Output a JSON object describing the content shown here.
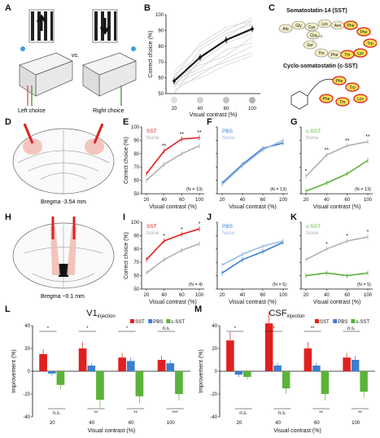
{
  "panels": {
    "A": {
      "label": "A",
      "left_caption": "Left choice",
      "vs": "vs.",
      "right_caption": "Right choice"
    },
    "B": {
      "label": "B",
      "xlabel": "Visual contrast (%)",
      "ylabel": "Correct choice (%)",
      "xticks": [
        "20",
        "40",
        "60",
        "100"
      ],
      "yticks": [
        "50",
        "60",
        "70",
        "80",
        "90",
        "100"
      ]
    },
    "C": {
      "label": "C",
      "title1": "Somatostatin-14 (SST)",
      "title2": "Cyclo-somatostatin (c-SST)",
      "sst_residues": [
        "Ala",
        "Gly",
        "Cys",
        "Lys",
        "Asn",
        "Phe",
        "Phe",
        "Trp",
        "Lys",
        "Thr",
        "Phe",
        "Thr",
        "Ser",
        "Cys"
      ],
      "csst_residues": [
        "Phe",
        "Trp",
        "Lys",
        "Thr",
        "Phe"
      ]
    },
    "D": {
      "label": "D",
      "caption": "Bregma -3.54 mm"
    },
    "H": {
      "label": "H",
      "caption": "Bregma ~0.1 mm"
    },
    "E": {
      "label": "E",
      "legend": [
        "SST",
        "None"
      ],
      "n": "(N = 13)",
      "xlabel": "Visual contrast (%)",
      "ylabel": "Correct choice (%)"
    },
    "F": {
      "label": "F",
      "legend": [
        "PBS",
        "None"
      ],
      "n": "(N = 13)",
      "xlabel": "Visual contrast (%)"
    },
    "G": {
      "label": "G",
      "legend": [
        "c-SST",
        "None"
      ],
      "n": "(N = 13)",
      "xlabel": "Visual contrast (%)"
    },
    "I": {
      "label": "I",
      "legend": [
        "SST",
        "None"
      ],
      "n": "(N = 4)",
      "xlabel": "Visual contrast (%)",
      "ylabel": "Correct choice (%)"
    },
    "J": {
      "label": "J",
      "legend": [
        "PBS",
        "None"
      ],
      "n": "(N = 5)",
      "xlabel": "Visual contrast (%)"
    },
    "K": {
      "label": "K",
      "legend": [
        "c-SST",
        "None"
      ],
      "n": "(N = 5)",
      "xlabel": "Visual contrast (%)"
    },
    "L": {
      "label": "L",
      "title": "V1",
      "title_sub": "injection",
      "legend": [
        "SST",
        "PBS",
        "c-SST"
      ],
      "xlabel": "Visual contrast (%)",
      "ylabel": "Improvement (%)"
    },
    "M": {
      "label": "M",
      "title": "CSF",
      "title_sub": "injection",
      "legend": [
        "SST",
        "PBS",
        "c-SST"
      ],
      "xlabel": "Visual contrast (%)",
      "ylabel": "Improvement (%)"
    }
  },
  "chart_data": [
    {
      "id": "B",
      "type": "line",
      "x": [
        20,
        40,
        60,
        100
      ],
      "ylim": [
        50,
        100
      ],
      "series": [
        {
          "values": [
            58,
            73,
            84,
            91
          ]
        }
      ]
    },
    {
      "id": "E",
      "type": "line",
      "x": [
        20,
        40,
        60,
        100
      ],
      "ylim": [
        50,
        100
      ],
      "series": [
        {
          "name": "SST",
          "values": [
            65,
            82,
            91,
            92
          ]
        },
        {
          "name": "None",
          "values": [
            60,
            72,
            80,
            86
          ]
        }
      ],
      "annotations": [
        "**",
        "**",
        "**"
      ]
    },
    {
      "id": "F",
      "type": "line",
      "x": [
        20,
        40,
        60,
        100
      ],
      "ylim": [
        50,
        100
      ],
      "series": [
        {
          "name": "PBS",
          "values": [
            58,
            72,
            84,
            88
          ]
        },
        {
          "name": "None",
          "values": [
            57,
            71,
            83,
            90
          ]
        }
      ]
    },
    {
      "id": "G",
      "type": "line",
      "x": [
        20,
        40,
        60,
        100
      ],
      "ylim": [
        50,
        100
      ],
      "series": [
        {
          "name": "c-SST",
          "values": [
            52,
            58,
            65,
            75
          ]
        },
        {
          "name": "None",
          "values": [
            63,
            79,
            86,
            89
          ]
        }
      ],
      "annotations": [
        "*",
        "**",
        "**",
        "**"
      ]
    },
    {
      "id": "I",
      "type": "line",
      "x": [
        20,
        40,
        60,
        100
      ],
      "ylim": [
        50,
        100
      ],
      "series": [
        {
          "name": "SST",
          "values": [
            72,
            86,
            91,
            95
          ]
        },
        {
          "name": "None",
          "values": [
            62,
            72,
            79,
            84
          ]
        }
      ],
      "annotations": [
        "*",
        "*",
        "*"
      ]
    },
    {
      "id": "J",
      "type": "line",
      "x": [
        20,
        40,
        60,
        100
      ],
      "ylim": [
        50,
        100
      ],
      "series": [
        {
          "name": "PBS",
          "values": [
            62,
            72,
            78,
            85
          ]
        },
        {
          "name": "None",
          "values": [
            68,
            76,
            82,
            86
          ]
        }
      ]
    },
    {
      "id": "K",
      "type": "line",
      "x": [
        20,
        40,
        60,
        100
      ],
      "ylim": [
        50,
        100
      ],
      "series": [
        {
          "name": "c-SST",
          "values": [
            60,
            62,
            60,
            62
          ]
        },
        {
          "name": "None",
          "values": [
            72,
            80,
            86,
            89
          ]
        }
      ],
      "annotations": [
        "*",
        "*",
        "*"
      ]
    },
    {
      "id": "L",
      "type": "bar",
      "categories": [
        "20",
        "40",
        "60",
        "100"
      ],
      "ylim": [
        -40,
        40
      ],
      "series": [
        {
          "name": "SST",
          "values": [
            15,
            20,
            12,
            10
          ]
        },
        {
          "name": "PBS",
          "values": [
            -2,
            5,
            9,
            7
          ]
        },
        {
          "name": "c-SST",
          "values": [
            -12,
            -25,
            -22,
            -20
          ]
        }
      ],
      "annotations_top": [
        "*",
        "*",
        "*",
        "n.s."
      ],
      "annotations_bottom": [
        "n.s.",
        "**",
        "**",
        "***"
      ]
    },
    {
      "id": "M",
      "type": "bar",
      "categories": [
        "20",
        "40",
        "60",
        "100"
      ],
      "ylim": [
        -40,
        40
      ],
      "series": [
        {
          "name": "SST",
          "values": [
            27,
            42,
            20,
            12
          ]
        },
        {
          "name": "PBS",
          "values": [
            -3,
            5,
            5,
            10
          ]
        },
        {
          "name": "c-SST",
          "values": [
            -5,
            -15,
            -20,
            -18
          ]
        }
      ],
      "annotations_top": [
        "*",
        "*",
        "**",
        "n.s."
      ],
      "annotations_bottom": [
        "n.s.",
        "n.s.",
        "**",
        "**"
      ]
    }
  ],
  "colors": {
    "sst": "#e02020",
    "pbs": "#3c7fd0",
    "csst": "#5bb33a",
    "none": "#b0b0b0",
    "black": "#111111"
  }
}
